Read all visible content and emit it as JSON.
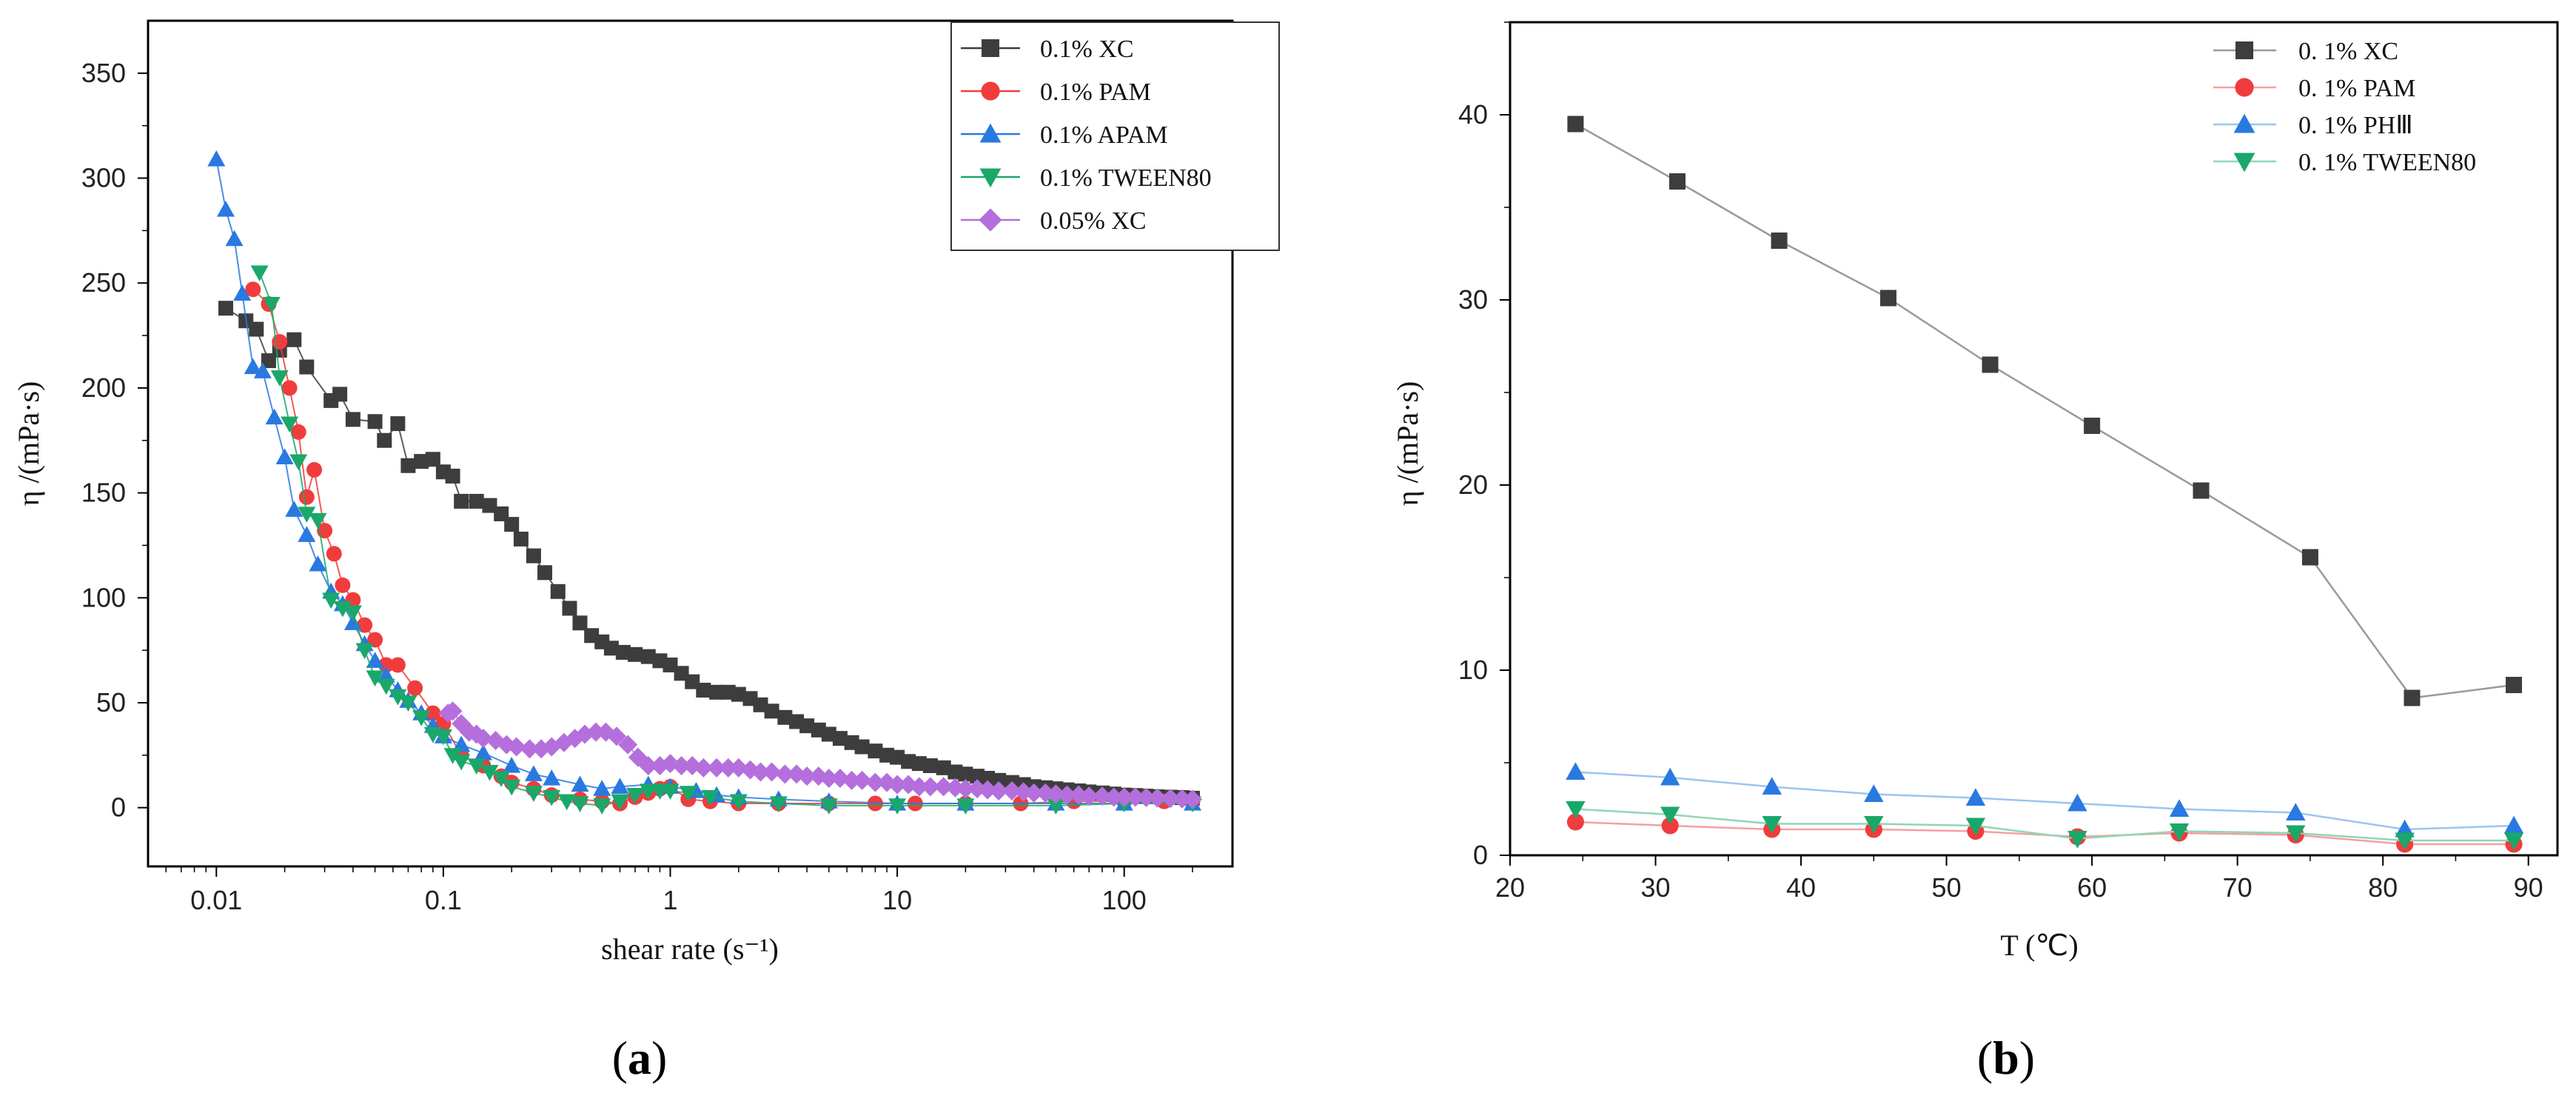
{
  "chart_data": [
    {
      "type": "scatter",
      "panel_label": "(a)",
      "panel_letter": "a",
      "xlabel": "shear rate (s⁻¹)",
      "ylabel": "η /(mPa·s)",
      "xscale": "log",
      "xlim": [
        0.005,
        300
      ],
      "ylim": [
        -28,
        375
      ],
      "x_ticks": [
        0.01,
        0.1,
        1,
        10,
        100
      ],
      "x_tick_labels": [
        "0.01",
        "0.1",
        "1",
        "10",
        "100"
      ],
      "y_ticks": [
        0,
        50,
        100,
        150,
        200,
        250,
        300,
        350
      ],
      "y_tick_labels": [
        "0",
        "50",
        "100",
        "150",
        "200",
        "250",
        "300",
        "350"
      ],
      "legend_position": "top-right",
      "series": [
        {
          "name": "0.1% XC",
          "marker": "square",
          "color": "#3d3d3d",
          "x": [
            0.011,
            0.0135,
            0.015,
            0.017,
            0.019,
            0.022,
            0.025,
            0.032,
            0.035,
            0.04,
            0.05,
            0.055,
            0.063,
            0.07,
            0.08,
            0.09,
            0.1,
            0.11,
            0.12,
            0.14,
            0.16,
            0.18,
            0.2,
            0.22,
            0.25,
            0.28,
            0.32,
            0.36,
            0.4,
            0.45,
            0.5,
            0.55,
            0.62,
            0.7,
            0.8,
            0.9,
            1.0,
            1.12,
            1.25,
            1.4,
            1.6,
            1.8,
            2.0,
            2.25,
            2.5,
            2.8,
            3.2,
            3.6,
            4.0,
            4.5,
            5.0,
            5.6,
            6.3,
            7.0,
            8.0,
            9.0,
            10,
            11.2,
            12.5,
            14,
            16,
            18,
            20,
            22.5,
            25,
            28,
            32,
            36,
            40,
            45,
            50,
            56,
            63,
            70,
            80,
            90,
            100,
            112,
            125,
            140,
            160,
            180,
            200
          ],
          "y": [
            238,
            232,
            228,
            213,
            218,
            223,
            210,
            194,
            197,
            185,
            184,
            175,
            183,
            163,
            165,
            166,
            160,
            158,
            146,
            146,
            144,
            140,
            135,
            128,
            120,
            112,
            103,
            95,
            88,
            82,
            79,
            76,
            74,
            73,
            72,
            70,
            68,
            64,
            60,
            56,
            55,
            55,
            54,
            52,
            49,
            46,
            43,
            41,
            39,
            37,
            35,
            33,
            31,
            29,
            27,
            25,
            24,
            22,
            21,
            20,
            19,
            17,
            16,
            15,
            14,
            13,
            12,
            11,
            10,
            9.5,
            9,
            8.5,
            8,
            7.5,
            7,
            6.5,
            6,
            5.8,
            5.5,
            5.2,
            5,
            4.8,
            4.5
          ]
        },
        {
          "name": "0.1% PAM",
          "marker": "circle",
          "color": "#f03c3c",
          "x": [
            0.0145,
            0.017,
            0.019,
            0.021,
            0.023,
            0.025,
            0.027,
            0.03,
            0.033,
            0.036,
            0.04,
            0.045,
            0.05,
            0.056,
            0.063,
            0.075,
            0.09,
            0.1,
            0.12,
            0.15,
            0.18,
            0.2,
            0.25,
            0.3,
            0.4,
            0.5,
            0.6,
            0.7,
            0.8,
            0.9,
            1.0,
            1.2,
            1.5,
            2,
            3,
            5,
            8,
            12,
            20,
            35,
            60,
            100,
            150,
            200
          ],
          "y": [
            247,
            240,
            222,
            200,
            179,
            148,
            161,
            132,
            121,
            106,
            99,
            87,
            80,
            68,
            68,
            57,
            45,
            40,
            25,
            20,
            15,
            12,
            9,
            6,
            4,
            3,
            2,
            5,
            7,
            9,
            10,
            4,
            3,
            2,
            2,
            2,
            2,
            2,
            2,
            2,
            3,
            3,
            3,
            3
          ]
        },
        {
          "name": "0.1% APAM",
          "marker": "triangle-up",
          "color": "#2979e0",
          "x": [
            0.01,
            0.011,
            0.012,
            0.013,
            0.0145,
            0.016,
            0.018,
            0.02,
            0.022,
            0.025,
            0.028,
            0.032,
            0.036,
            0.04,
            0.045,
            0.05,
            0.056,
            0.063,
            0.07,
            0.08,
            0.09,
            0.1,
            0.12,
            0.15,
            0.2,
            0.25,
            0.3,
            0.4,
            0.5,
            0.6,
            0.8,
            1.0,
            1.3,
            1.6,
            2,
            3,
            5,
            10,
            20,
            50,
            100,
            200
          ],
          "y": [
            309,
            285,
            271,
            245,
            210,
            208,
            186,
            167,
            142,
            130,
            116,
            103,
            97,
            88,
            78,
            70,
            63,
            56,
            51,
            45,
            39,
            34,
            30,
            26,
            20,
            16,
            14,
            11,
            9,
            10,
            11,
            10,
            8,
            6,
            5,
            4,
            3,
            2,
            2,
            2,
            2,
            2
          ]
        },
        {
          "name": "0.1% TWEEN80",
          "marker": "triangle-down",
          "color": "#1aa86a",
          "x": [
            0.0155,
            0.0175,
            0.019,
            0.021,
            0.023,
            0.025,
            0.028,
            0.032,
            0.036,
            0.04,
            0.045,
            0.05,
            0.056,
            0.063,
            0.07,
            0.08,
            0.09,
            0.1,
            0.11,
            0.12,
            0.14,
            0.16,
            0.18,
            0.2,
            0.25,
            0.3,
            0.35,
            0.4,
            0.5,
            0.6,
            0.7,
            0.8,
            0.9,
            1.0,
            1.2,
            1.5,
            2,
            3,
            5,
            10,
            20,
            50,
            100,
            200
          ],
          "y": [
            255,
            240,
            205,
            183,
            165,
            140,
            137,
            99,
            95,
            93,
            75,
            62,
            58,
            53,
            50,
            43,
            35,
            34,
            25,
            22,
            20,
            17,
            14,
            10,
            7,
            5,
            3,
            2,
            1,
            3,
            6,
            8,
            8,
            8,
            7,
            5,
            3,
            2,
            1,
            1,
            1,
            1,
            2,
            2
          ]
        },
        {
          "name": "0.05% XC",
          "marker": "diamond",
          "color": "#b56fdc",
          "x": [
            0.105,
            0.11,
            0.12,
            0.13,
            0.14,
            0.15,
            0.17,
            0.19,
            0.21,
            0.24,
            0.27,
            0.3,
            0.34,
            0.38,
            0.42,
            0.47,
            0.52,
            0.58,
            0.65,
            0.72,
            0.8,
            0.9,
            1.0,
            1.12,
            1.25,
            1.4,
            1.6,
            1.8,
            2.0,
            2.25,
            2.5,
            2.8,
            3.2,
            3.6,
            4.0,
            4.5,
            5.0,
            5.6,
            6.3,
            7.0,
            8.0,
            9.0,
            10,
            11.2,
            12.5,
            14,
            16,
            18,
            20,
            22.5,
            25,
            28,
            32,
            36,
            40,
            45,
            50,
            56,
            63,
            70,
            80,
            90,
            100,
            112,
            125,
            140,
            160,
            180,
            200
          ],
          "y": [
            45,
            46,
            40,
            36,
            35,
            33,
            32,
            30,
            29,
            28,
            28,
            29,
            31,
            33,
            35,
            36,
            36,
            34,
            30,
            24,
            20,
            20,
            21,
            20,
            20,
            19,
            19,
            19,
            19,
            18,
            17,
            17,
            16,
            16,
            15,
            15,
            14,
            14,
            13,
            13,
            12,
            12,
            11,
            11,
            10,
            10,
            10,
            9.5,
            9,
            9,
            8.5,
            8,
            8,
            7.5,
            7,
            7,
            6.5,
            6,
            6,
            5.5,
            5.5,
            5,
            5,
            5,
            4.8,
            4.6,
            4.4,
            4.2,
            4
          ]
        }
      ]
    },
    {
      "type": "line",
      "panel_label": "(b)",
      "panel_letter": "b",
      "xlabel": "T (℃)",
      "ylabel": "η /(mPa·s)",
      "xlim": [
        20,
        92
      ],
      "ylim": [
        0,
        45
      ],
      "x_ticks": [
        20,
        30,
        40,
        50,
        60,
        70,
        80,
        90
      ],
      "x_tick_labels": [
        "20",
        "30",
        "40",
        "50",
        "60",
        "70",
        "80",
        "90"
      ],
      "y_ticks": [
        0,
        10,
        20,
        30,
        40
      ],
      "y_tick_labels": [
        "0",
        "10",
        "20",
        "30",
        "40"
      ],
      "legend_position": "top-right",
      "series": [
        {
          "name": "0. 1% XC",
          "marker": "square",
          "color": "#3d3d3d",
          "line_color": "#9a9a9a",
          "x": [
            24.5,
            31.5,
            38.5,
            46,
            53,
            60,
            67.5,
            75,
            82,
            89
          ],
          "y": [
            39.5,
            36.4,
            33.2,
            30.1,
            26.5,
            23.2,
            19.7,
            16.1,
            8.5,
            9.2
          ]
        },
        {
          "name": "0. 1% PAM",
          "marker": "circle",
          "color": "#f03c3c",
          "line_color": "#f4a0a0",
          "x": [
            24.5,
            31,
            38,
            45,
            52,
            59,
            66,
            74,
            81.5,
            89
          ],
          "y": [
            1.8,
            1.6,
            1.4,
            1.4,
            1.3,
            1.0,
            1.2,
            1.1,
            0.6,
            0.6
          ]
        },
        {
          "name": "0. 1% PHⅢ",
          "marker": "triangle-up",
          "color": "#2979e0",
          "line_color": "#9cc4f0",
          "x": [
            24.5,
            31,
            38,
            45,
            52,
            59,
            66,
            74,
            81.5,
            89
          ],
          "y": [
            4.5,
            4.2,
            3.7,
            3.3,
            3.1,
            2.8,
            2.5,
            2.3,
            1.4,
            1.6
          ]
        },
        {
          "name": "0. 1% TWEEN80",
          "marker": "triangle-down",
          "color": "#1aa86a",
          "line_color": "#8fd6b4",
          "x": [
            24.5,
            31,
            38,
            45,
            52,
            59,
            66,
            74,
            81.5,
            89
          ],
          "y": [
            2.5,
            2.2,
            1.7,
            1.7,
            1.6,
            0.9,
            1.3,
            1.2,
            0.8,
            0.8
          ]
        }
      ]
    }
  ]
}
